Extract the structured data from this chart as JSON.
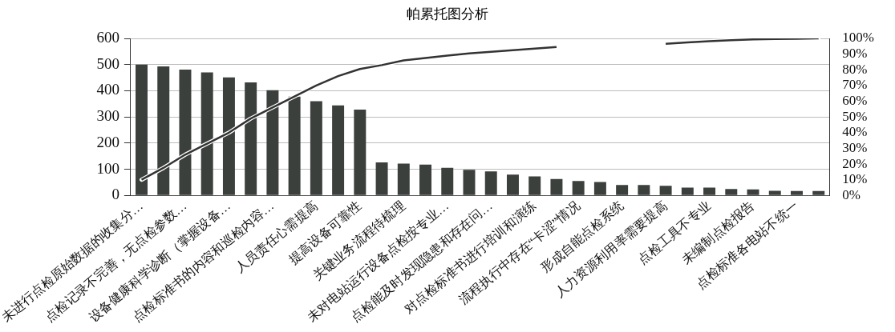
{
  "chart_data": {
    "type": "bar",
    "title": "帕累托图分析",
    "categories": [
      "未进行点检原始数据的收集分…",
      null,
      "点检记录不完善，无点检参数…",
      null,
      "设备健康科学诊断（掌握设备…",
      null,
      "点检标准书的内容和巡检内容…",
      null,
      "人员责任心需提高",
      null,
      "提高设备可靠性",
      null,
      "关键业务流程待梳理",
      null,
      "未对电站运行设备点检按专业…",
      null,
      "点检能及时发现隐患和存在问…",
      null,
      "对点检标准书进行培训和演练",
      null,
      "流程执行中存在“卡涩”情况",
      null,
      "形成自能点检系统",
      null,
      "人力资源利用率需要提高",
      null,
      "点检工具不专业",
      null,
      "未编制点检报告",
      null,
      "点检标准各电站不统一",
      null
    ],
    "series": [
      {
        "color": "#3b403d",
        "values": [
          500,
          493,
          481,
          470,
          451,
          432,
          402,
          378,
          360,
          344,
          328,
          126,
          122,
          118,
          106,
          98,
          92,
          80,
          73,
          63,
          55,
          51,
          40,
          40,
          37,
          30,
          30,
          25,
          23,
          18,
          17,
          17
        ]
      },
      {
        "type": "line",
        "axis": "y2",
        "color": "#333333",
        "values": [
          10,
          17.5,
          26,
          33,
          40,
          49,
          56,
          63,
          70,
          76,
          80.5,
          83,
          86,
          87.5,
          89,
          90.5,
          91.5,
          92.5,
          93.5,
          94.5,
          null,
          null,
          null,
          null,
          96.6,
          97.5,
          98.2,
          98.8,
          99.3,
          99.6,
          99.8,
          100
        ]
      }
    ],
    "ylim": [
      0,
      600
    ],
    "yticks": [
      0,
      100,
      200,
      300,
      400,
      500,
      600
    ],
    "y2lim": [
      0,
      100
    ],
    "y2ticks": [
      {
        "value": 0,
        "label": "0%"
      },
      {
        "value": 10,
        "label": "10%"
      },
      {
        "value": 20,
        "label": "20%"
      },
      {
        "value": 30,
        "label": "30%"
      },
      {
        "value": 40,
        "label": "40%"
      },
      {
        "value": 50,
        "label": "50%"
      },
      {
        "value": 60,
        "label": "60%"
      },
      {
        "value": 70,
        "label": "70%"
      },
      {
        "value": 80,
        "label": "80%"
      },
      {
        "value": 90,
        "label": "90%"
      },
      {
        "value": 100,
        "label": "100%"
      }
    ],
    "grid": "y",
    "legend": false,
    "marker": "none",
    "line_style": "solid"
  }
}
